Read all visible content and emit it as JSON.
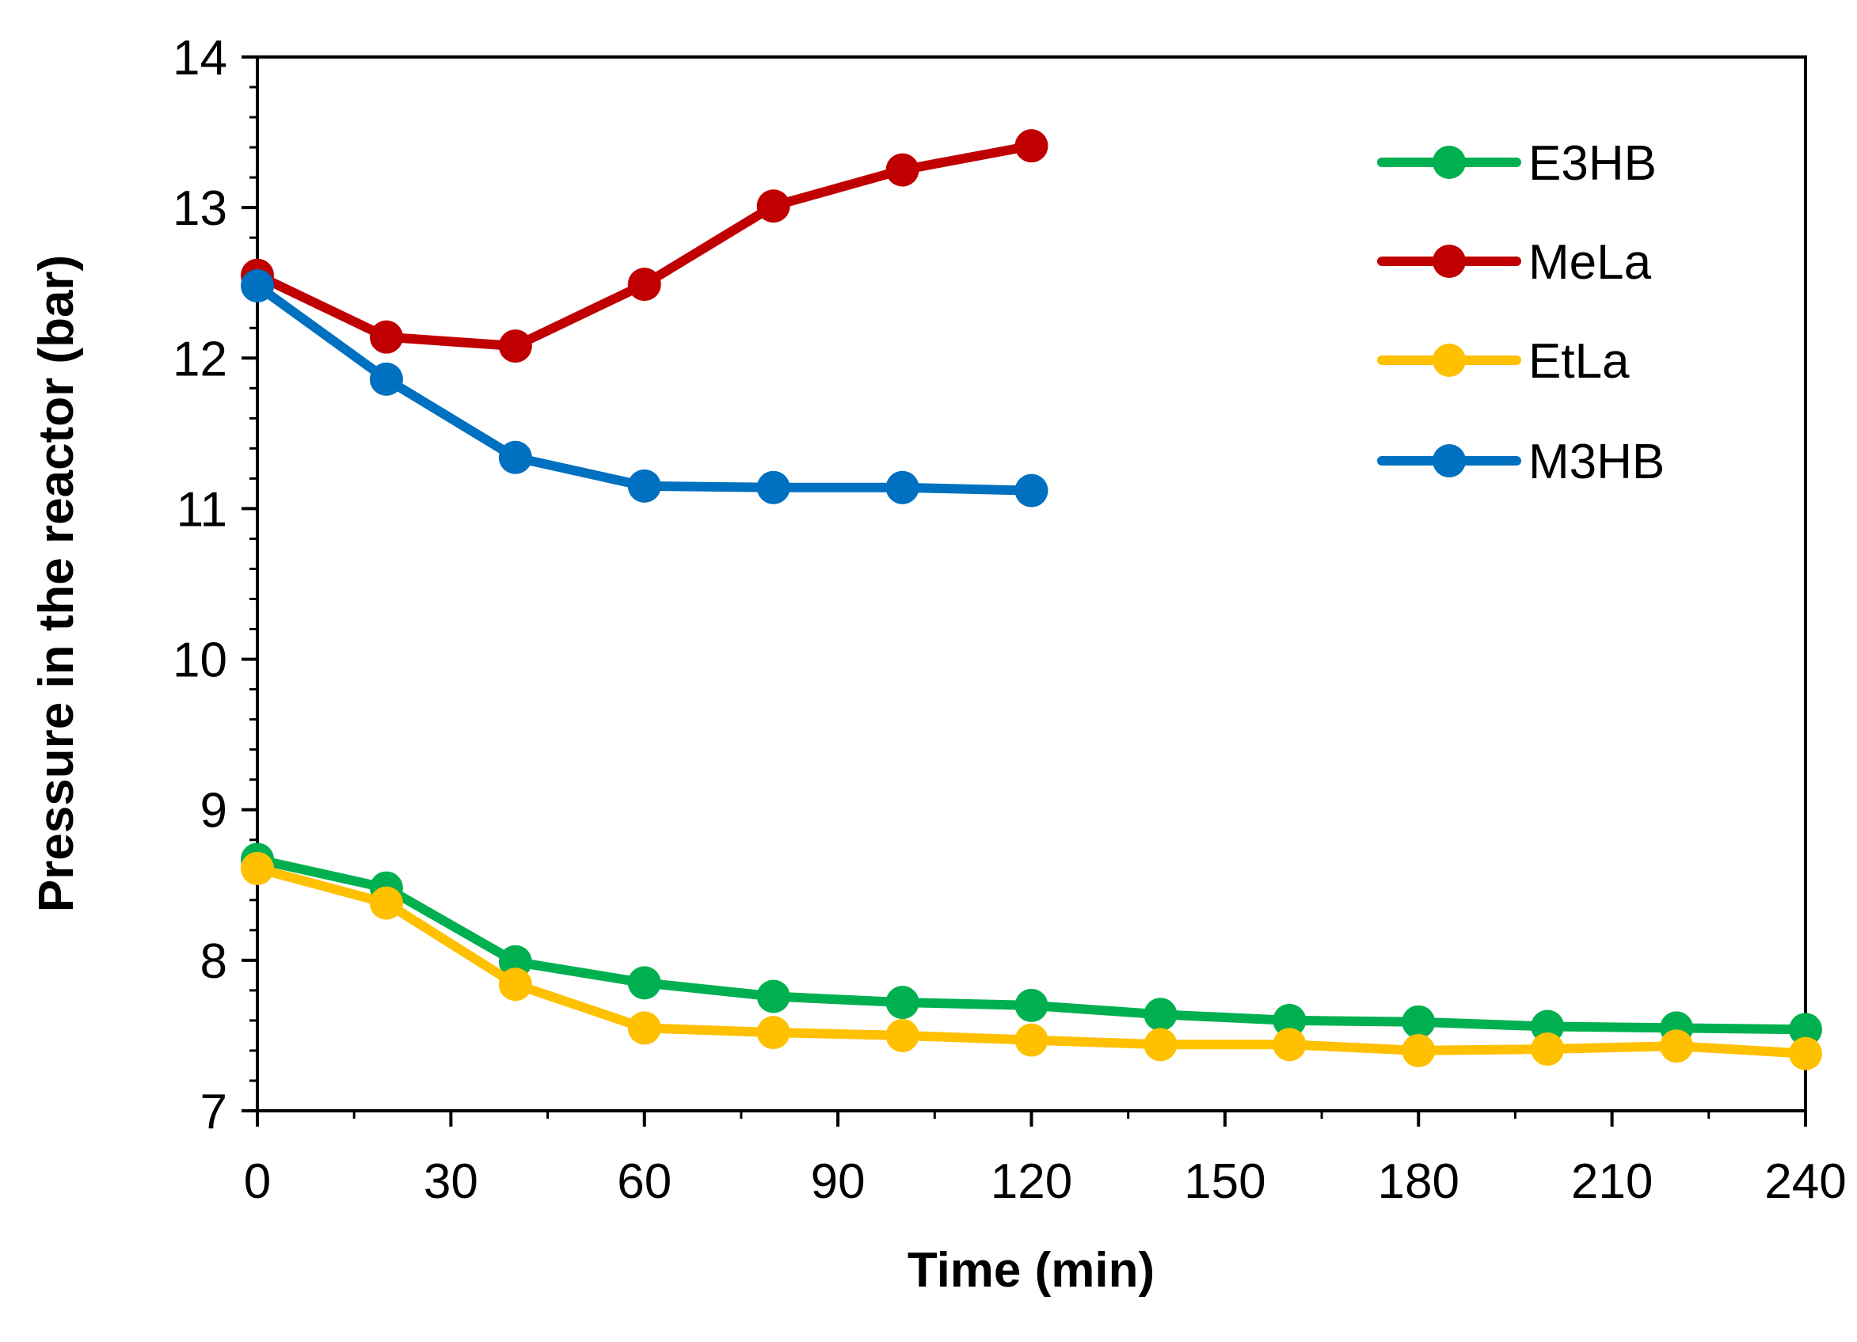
{
  "chart_data": {
    "type": "line",
    "title": "",
    "xlabel": "Time (min)",
    "ylabel": "Pressure in the reactor (bar)",
    "xlim": [
      0,
      240
    ],
    "ylim": [
      7,
      14
    ],
    "x_ticks": [
      "0",
      "30",
      "60",
      "90",
      "120",
      "150",
      "180",
      "210",
      "240"
    ],
    "y_ticks": [
      "7",
      "8",
      "9",
      "10",
      "11",
      "12",
      "13",
      "14"
    ],
    "grid": false,
    "legend_position": "top-right",
    "series": [
      {
        "name": "E3HB",
        "color": "#00B050",
        "x": [
          0,
          20,
          40,
          60,
          80,
          100,
          120,
          140,
          160,
          180,
          200,
          220,
          240
        ],
        "y": [
          8.67,
          8.48,
          7.99,
          7.85,
          7.76,
          7.72,
          7.7,
          7.64,
          7.6,
          7.59,
          7.56,
          7.55,
          7.54
        ]
      },
      {
        "name": "MeLa",
        "color": "#C00000",
        "x": [
          0,
          20,
          40,
          60,
          80,
          100,
          120
        ],
        "y": [
          12.55,
          12.14,
          12.08,
          12.49,
          13.01,
          13.25,
          13.41
        ]
      },
      {
        "name": "EtLa",
        "color": "#FFC000",
        "x": [
          0,
          20,
          40,
          60,
          80,
          100,
          120,
          140,
          160,
          180,
          200,
          220,
          240
        ],
        "y": [
          8.61,
          8.38,
          7.84,
          7.55,
          7.52,
          7.5,
          7.47,
          7.44,
          7.44,
          7.4,
          7.41,
          7.43,
          7.38
        ]
      },
      {
        "name": "M3HB",
        "color": "#0070C0",
        "x": [
          0,
          20,
          40,
          60,
          80,
          100,
          120
        ],
        "y": [
          12.48,
          11.86,
          11.34,
          11.15,
          11.14,
          11.14,
          11.12
        ]
      }
    ]
  }
}
